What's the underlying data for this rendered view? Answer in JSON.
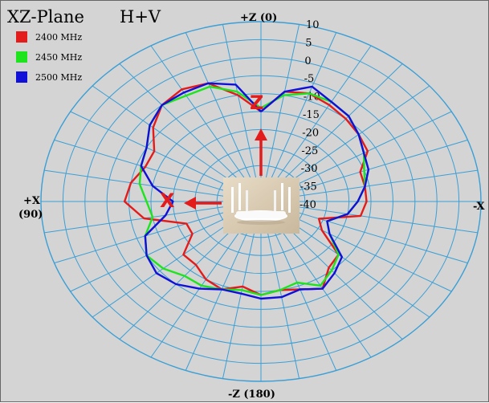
{
  "chart_data": {
    "type": "polar-line",
    "title": "XZ-Plane",
    "subtitle": "H+V",
    "series": [
      {
        "name": "2400 MHz",
        "color": "#e41b1b",
        "angles": [
          0,
          10,
          20,
          30,
          40,
          50,
          60,
          70,
          80,
          90,
          100,
          110,
          120,
          130,
          140,
          150,
          160,
          170,
          180,
          190,
          200,
          210,
          220,
          230,
          240,
          250,
          260,
          270,
          280,
          290,
          300,
          310,
          320,
          330,
          340,
          350
        ],
        "values": [
          -15,
          -10,
          -5,
          -4,
          -5,
          -8,
          -12,
          -12,
          -10,
          -9,
          -13,
          -22,
          -22,
          -17,
          -17,
          -15,
          -14,
          -16,
          -14,
          -15,
          -14,
          -12,
          -16,
          -17,
          -24,
          -26,
          -17,
          -16,
          -16,
          -16,
          -12,
          -11,
          -10,
          -9,
          -8,
          -9
        ]
      },
      {
        "name": "2450 MHz",
        "color": "#1ee41e",
        "angles": [
          0,
          10,
          20,
          30,
          40,
          50,
          60,
          70,
          80,
          90,
          100,
          110,
          120,
          130,
          140,
          150,
          160,
          170,
          180,
          190,
          200,
          210,
          220,
          230,
          240,
          250,
          260,
          270,
          280,
          290,
          300,
          310,
          320,
          330,
          340,
          350
        ],
        "values": [
          -14,
          -9,
          -6,
          -6,
          -5,
          -7,
          -10,
          -11,
          -12,
          -14,
          -15,
          -12,
          -10,
          -11,
          -13,
          -13,
          -14,
          -15,
          -14,
          -15,
          -16,
          -13,
          -15,
          -17,
          -22,
          -24,
          -20,
          -18,
          -16,
          -15,
          -13,
          -11,
          -9,
          -8,
          -8,
          -10
        ]
      },
      {
        "name": "2500 MHz",
        "color": "#1010d8",
        "angles": [
          0,
          10,
          20,
          30,
          40,
          50,
          60,
          70,
          80,
          90,
          100,
          110,
          120,
          130,
          140,
          150,
          160,
          170,
          180,
          190,
          200,
          210,
          220,
          230,
          240,
          250,
          260,
          270,
          280,
          290,
          300,
          310,
          320,
          330,
          340,
          350
        ],
        "values": [
          -15,
          -7,
          -5,
          -5,
          -5,
          -7,
          -10,
          -11,
          -15,
          -20,
          -18,
          -12,
          -10,
          -9,
          -10,
          -12,
          -14,
          -14,
          -13,
          -13,
          -14,
          -12,
          -14,
          -16,
          -22,
          -24,
          -20,
          -18,
          -16,
          -14,
          -13,
          -11,
          -9,
          -8,
          -6,
          -9
        ]
      }
    ],
    "radial_ticks": [
      "10",
      "5",
      "0",
      "-5",
      "-10",
      "-15",
      "-20",
      "-25",
      "-30",
      "-35",
      "-40"
    ],
    "radial_range": [
      -40,
      10
    ],
    "angular_step_deg": 10,
    "radial_step": 5,
    "grid": true,
    "legend_position": "top-left",
    "axis_labels": {
      "top": "+Z (0)",
      "bottom": "-Z (180)",
      "left_line1": "+X",
      "left_line2": "(90)",
      "right": "-X"
    },
    "arrows": {
      "z": "Z",
      "x": "X"
    },
    "colors": {
      "grid": "#3a9fd6",
      "background": "#d4d4d4",
      "arrow": "#e41b1b"
    }
  },
  "image": {
    "name": "router-photo",
    "icon": "router-icon"
  }
}
